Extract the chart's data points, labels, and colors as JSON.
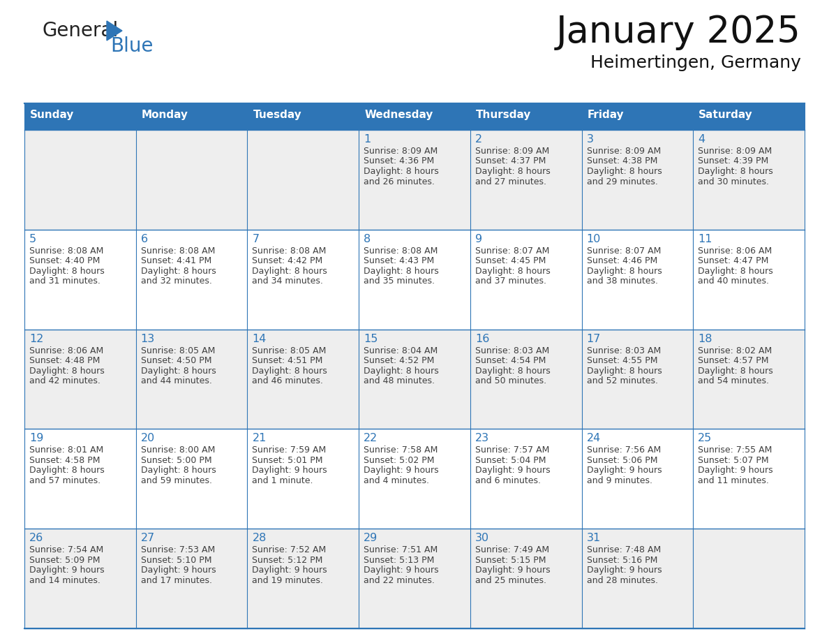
{
  "title": "January 2025",
  "subtitle": "Heimertingen, Germany",
  "header_bg": "#2E75B6",
  "header_text": "#FFFFFF",
  "header_days": [
    "Sunday",
    "Monday",
    "Tuesday",
    "Wednesday",
    "Thursday",
    "Friday",
    "Saturday"
  ],
  "row_bg_even": "#EEEEEE",
  "row_bg_odd": "#FFFFFF",
  "border_color": "#2E75B6",
  "day_number_color": "#2E75B6",
  "text_color": "#404040",
  "logo_general_color": "#222222",
  "logo_blue_color": "#2E75B6",
  "calendar": [
    [
      null,
      null,
      null,
      {
        "day": 1,
        "sunrise": "8:09 AM",
        "sunset": "4:36 PM",
        "daylight": "8 hours",
        "daylight2": "and 26 minutes."
      },
      {
        "day": 2,
        "sunrise": "8:09 AM",
        "sunset": "4:37 PM",
        "daylight": "8 hours",
        "daylight2": "and 27 minutes."
      },
      {
        "day": 3,
        "sunrise": "8:09 AM",
        "sunset": "4:38 PM",
        "daylight": "8 hours",
        "daylight2": "and 29 minutes."
      },
      {
        "day": 4,
        "sunrise": "8:09 AM",
        "sunset": "4:39 PM",
        "daylight": "8 hours",
        "daylight2": "and 30 minutes."
      }
    ],
    [
      {
        "day": 5,
        "sunrise": "8:08 AM",
        "sunset": "4:40 PM",
        "daylight": "8 hours",
        "daylight2": "and 31 minutes."
      },
      {
        "day": 6,
        "sunrise": "8:08 AM",
        "sunset": "4:41 PM",
        "daylight": "8 hours",
        "daylight2": "and 32 minutes."
      },
      {
        "day": 7,
        "sunrise": "8:08 AM",
        "sunset": "4:42 PM",
        "daylight": "8 hours",
        "daylight2": "and 34 minutes."
      },
      {
        "day": 8,
        "sunrise": "8:08 AM",
        "sunset": "4:43 PM",
        "daylight": "8 hours",
        "daylight2": "and 35 minutes."
      },
      {
        "day": 9,
        "sunrise": "8:07 AM",
        "sunset": "4:45 PM",
        "daylight": "8 hours",
        "daylight2": "and 37 minutes."
      },
      {
        "day": 10,
        "sunrise": "8:07 AM",
        "sunset": "4:46 PM",
        "daylight": "8 hours",
        "daylight2": "and 38 minutes."
      },
      {
        "day": 11,
        "sunrise": "8:06 AM",
        "sunset": "4:47 PM",
        "daylight": "8 hours",
        "daylight2": "and 40 minutes."
      }
    ],
    [
      {
        "day": 12,
        "sunrise": "8:06 AM",
        "sunset": "4:48 PM",
        "daylight": "8 hours",
        "daylight2": "and 42 minutes."
      },
      {
        "day": 13,
        "sunrise": "8:05 AM",
        "sunset": "4:50 PM",
        "daylight": "8 hours",
        "daylight2": "and 44 minutes."
      },
      {
        "day": 14,
        "sunrise": "8:05 AM",
        "sunset": "4:51 PM",
        "daylight": "8 hours",
        "daylight2": "and 46 minutes."
      },
      {
        "day": 15,
        "sunrise": "8:04 AM",
        "sunset": "4:52 PM",
        "daylight": "8 hours",
        "daylight2": "and 48 minutes."
      },
      {
        "day": 16,
        "sunrise": "8:03 AM",
        "sunset": "4:54 PM",
        "daylight": "8 hours",
        "daylight2": "and 50 minutes."
      },
      {
        "day": 17,
        "sunrise": "8:03 AM",
        "sunset": "4:55 PM",
        "daylight": "8 hours",
        "daylight2": "and 52 minutes."
      },
      {
        "day": 18,
        "sunrise": "8:02 AM",
        "sunset": "4:57 PM",
        "daylight": "8 hours",
        "daylight2": "and 54 minutes."
      }
    ],
    [
      {
        "day": 19,
        "sunrise": "8:01 AM",
        "sunset": "4:58 PM",
        "daylight": "8 hours",
        "daylight2": "and 57 minutes."
      },
      {
        "day": 20,
        "sunrise": "8:00 AM",
        "sunset": "5:00 PM",
        "daylight": "8 hours",
        "daylight2": "and 59 minutes."
      },
      {
        "day": 21,
        "sunrise": "7:59 AM",
        "sunset": "5:01 PM",
        "daylight": "9 hours",
        "daylight2": "and 1 minute."
      },
      {
        "day": 22,
        "sunrise": "7:58 AM",
        "sunset": "5:02 PM",
        "daylight": "9 hours",
        "daylight2": "and 4 minutes."
      },
      {
        "day": 23,
        "sunrise": "7:57 AM",
        "sunset": "5:04 PM",
        "daylight": "9 hours",
        "daylight2": "and 6 minutes."
      },
      {
        "day": 24,
        "sunrise": "7:56 AM",
        "sunset": "5:06 PM",
        "daylight": "9 hours",
        "daylight2": "and 9 minutes."
      },
      {
        "day": 25,
        "sunrise": "7:55 AM",
        "sunset": "5:07 PM",
        "daylight": "9 hours",
        "daylight2": "and 11 minutes."
      }
    ],
    [
      {
        "day": 26,
        "sunrise": "7:54 AM",
        "sunset": "5:09 PM",
        "daylight": "9 hours",
        "daylight2": "and 14 minutes."
      },
      {
        "day": 27,
        "sunrise": "7:53 AM",
        "sunset": "5:10 PM",
        "daylight": "9 hours",
        "daylight2": "and 17 minutes."
      },
      {
        "day": 28,
        "sunrise": "7:52 AM",
        "sunset": "5:12 PM",
        "daylight": "9 hours",
        "daylight2": "and 19 minutes."
      },
      {
        "day": 29,
        "sunrise": "7:51 AM",
        "sunset": "5:13 PM",
        "daylight": "9 hours",
        "daylight2": "and 22 minutes."
      },
      {
        "day": 30,
        "sunrise": "7:49 AM",
        "sunset": "5:15 PM",
        "daylight": "9 hours",
        "daylight2": "and 25 minutes."
      },
      {
        "day": 31,
        "sunrise": "7:48 AM",
        "sunset": "5:16 PM",
        "daylight": "9 hours",
        "daylight2": "and 28 minutes."
      },
      null
    ]
  ]
}
